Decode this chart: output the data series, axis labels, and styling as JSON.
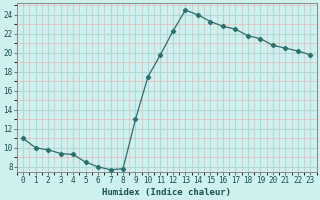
{
  "x": [
    0,
    1,
    2,
    3,
    4,
    5,
    6,
    7,
    8,
    9,
    10,
    11,
    12,
    13,
    14,
    15,
    16,
    17,
    18,
    19,
    20,
    21,
    22,
    23
  ],
  "y": [
    11,
    10,
    9.8,
    9.4,
    9.3,
    8.5,
    8.0,
    7.7,
    7.8,
    13.0,
    17.5,
    19.8,
    22.3,
    24.5,
    24.0,
    23.3,
    22.8,
    22.5,
    21.8,
    21.5,
    20.8,
    20.5,
    20.2,
    19.8
  ],
  "line_color": "#2d7070",
  "marker": "D",
  "marker_size": 2.2,
  "bg_color": "#cef0ee",
  "grid_major_color": "#b0d8d8",
  "grid_minor_color": "#e8b8b8",
  "xlabel": "Humidex (Indice chaleur)",
  "ylim": [
    7.5,
    25.2
  ],
  "xlim": [
    -0.5,
    23.5
  ],
  "yticks": [
    8,
    10,
    12,
    14,
    16,
    18,
    20,
    22,
    24
  ],
  "xticks": [
    0,
    1,
    2,
    3,
    4,
    5,
    6,
    7,
    8,
    9,
    10,
    11,
    12,
    13,
    14,
    15,
    16,
    17,
    18,
    19,
    20,
    21,
    22,
    23
  ],
  "tick_fontsize": 5.5,
  "xlabel_fontsize": 6.5
}
